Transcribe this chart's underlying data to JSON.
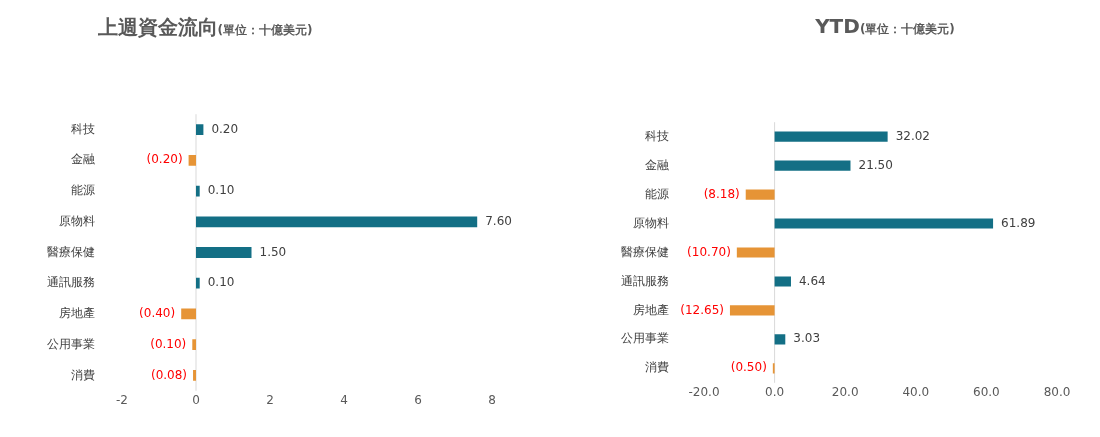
{
  "chart_data": [
    {
      "type": "bar",
      "orientation": "horizontal",
      "title": "上週資金流向",
      "subtitle": "(單位：十億美元)",
      "categories": [
        "科技",
        "金融",
        "能源",
        "原物料",
        "醫療保健",
        "通訊服務",
        "房地產",
        "公用事業",
        "消費"
      ],
      "values": [
        0.2,
        -0.2,
        0.1,
        7.6,
        1.5,
        0.1,
        -0.4,
        -0.1,
        -0.08
      ],
      "value_labels": [
        "0.20",
        "(0.20)",
        "0.10",
        "7.60",
        "1.50",
        "0.10",
        "(0.40)",
        "(0.10)",
        "(0.08)"
      ],
      "colors": [
        "#136f85",
        "#e69436",
        "#136f85",
        "#136f85",
        "#136f85",
        "#136f85",
        "#e69436",
        "#e69436",
        "#e69436"
      ],
      "xlim": [
        -2,
        8
      ],
      "xticks": [
        -2,
        0,
        2,
        4,
        6,
        8
      ],
      "grid": false,
      "legend": false,
      "ref_lines": [
        {
          "axis": "x",
          "value": 0,
          "color": "#d9d9d9"
        }
      ]
    },
    {
      "type": "bar",
      "orientation": "horizontal",
      "title": "YTD",
      "subtitle": "(單位：十億美元)",
      "categories": [
        "科技",
        "金融",
        "能源",
        "原物料",
        "醫療保健",
        "通訊服務",
        "房地產",
        "公用事業",
        "消費"
      ],
      "values": [
        32.02,
        21.5,
        -8.18,
        61.89,
        -10.7,
        4.64,
        -12.65,
        3.03,
        -0.5
      ],
      "value_labels": [
        "32.02",
        "21.50",
        "(8.18)",
        "61.89",
        "(10.70)",
        "4.64",
        "(12.65)",
        "3.03",
        "(0.50)"
      ],
      "colors": [
        "#136f85",
        "#136f85",
        "#e69436",
        "#136f85",
        "#e69436",
        "#136f85",
        "#e69436",
        "#136f85",
        "#e69436"
      ],
      "xlim": [
        -20,
        80
      ],
      "xticks": [
        {
          "value": -20,
          "label": "-20.0"
        },
        {
          "value": 0,
          "label": "0.0"
        },
        {
          "value": 20,
          "label": "20.0"
        },
        {
          "value": 40,
          "label": "40.0"
        },
        {
          "value": 60,
          "label": "60.0"
        },
        {
          "value": 80,
          "label": "80.0"
        }
      ],
      "grid": false,
      "legend": false,
      "ref_lines": [
        {
          "axis": "x",
          "value": 0,
          "color": "#d9d9d9"
        }
      ]
    }
  ]
}
